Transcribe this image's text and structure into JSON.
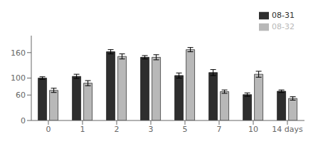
{
  "chart_data": {
    "type": "bar",
    "categories": [
      "0",
      "1",
      "2",
      "3",
      "5",
      "7",
      "10",
      "14 days"
    ],
    "series": [
      {
        "name": "08-31",
        "color": "#2e2e2e",
        "values": [
          100,
          104,
          162,
          149,
          106,
          113,
          61,
          69
        ],
        "errors": [
          3,
          5,
          5,
          4,
          6,
          7,
          4,
          3
        ]
      },
      {
        "name": "08-32",
        "color": "#b8b8b8",
        "values": [
          71,
          88,
          151,
          149,
          167,
          68,
          109,
          52
        ],
        "errors": [
          5,
          6,
          6,
          6,
          5,
          4,
          7,
          4
        ]
      }
    ],
    "ylim": [
      0,
      200
    ],
    "yticks": [
      0,
      60,
      100,
      160
    ],
    "grid": false,
    "legend": "upper right"
  }
}
